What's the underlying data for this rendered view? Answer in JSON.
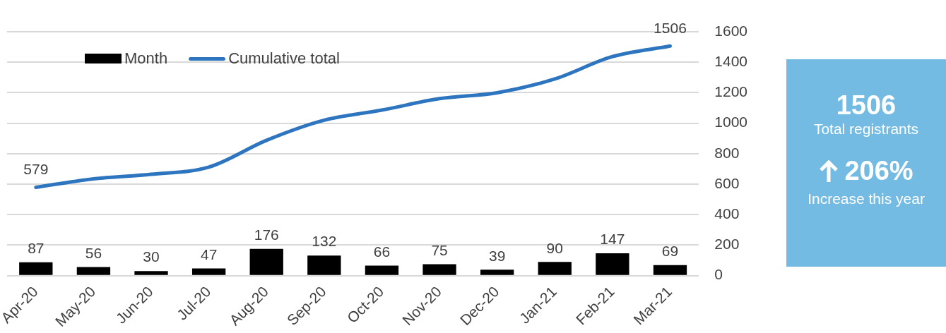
{
  "chart_data": [
    {
      "type": "bar",
      "categories": [
        "Apr-20",
        "May-20",
        "Jun-20",
        "Jul-20",
        "Aug-20",
        "Sep-20",
        "Oct-20",
        "Nov-20",
        "Dec-20",
        "Jan-21",
        "Feb-21",
        "Mar-21"
      ],
      "series": [
        {
          "name": "Month",
          "color": "#000000",
          "values": [
            87,
            56,
            30,
            47,
            176,
            132,
            66,
            75,
            39,
            90,
            147,
            69
          ],
          "value_labels": [
            "87",
            "56",
            "30",
            "47",
            "176",
            "132",
            "66",
            "75",
            "39",
            "90",
            "147",
            "69"
          ]
        },
        {
          "name": "Cumulative total",
          "type": "line",
          "color": "#2e75c0",
          "values": [
            579,
            635,
            665,
            712,
            888,
            1020,
            1086,
            1161,
            1200,
            1290,
            1437,
            1506
          ],
          "value_labels": [
            "579",
            null,
            null,
            null,
            null,
            null,
            null,
            null,
            null,
            null,
            null,
            "1506"
          ]
        }
      ],
      "ylim": [
        0,
        1600
      ],
      "yticks": [
        0,
        200,
        400,
        600,
        800,
        1000,
        1200,
        1400,
        1600
      ],
      "grid": "y",
      "legend": "top left",
      "marker": "none"
    },
    {
      "type": "other",
      "annotations": [
        "1506",
        "Total registrants",
        "206%",
        "Increase this year"
      ]
    }
  ]
}
